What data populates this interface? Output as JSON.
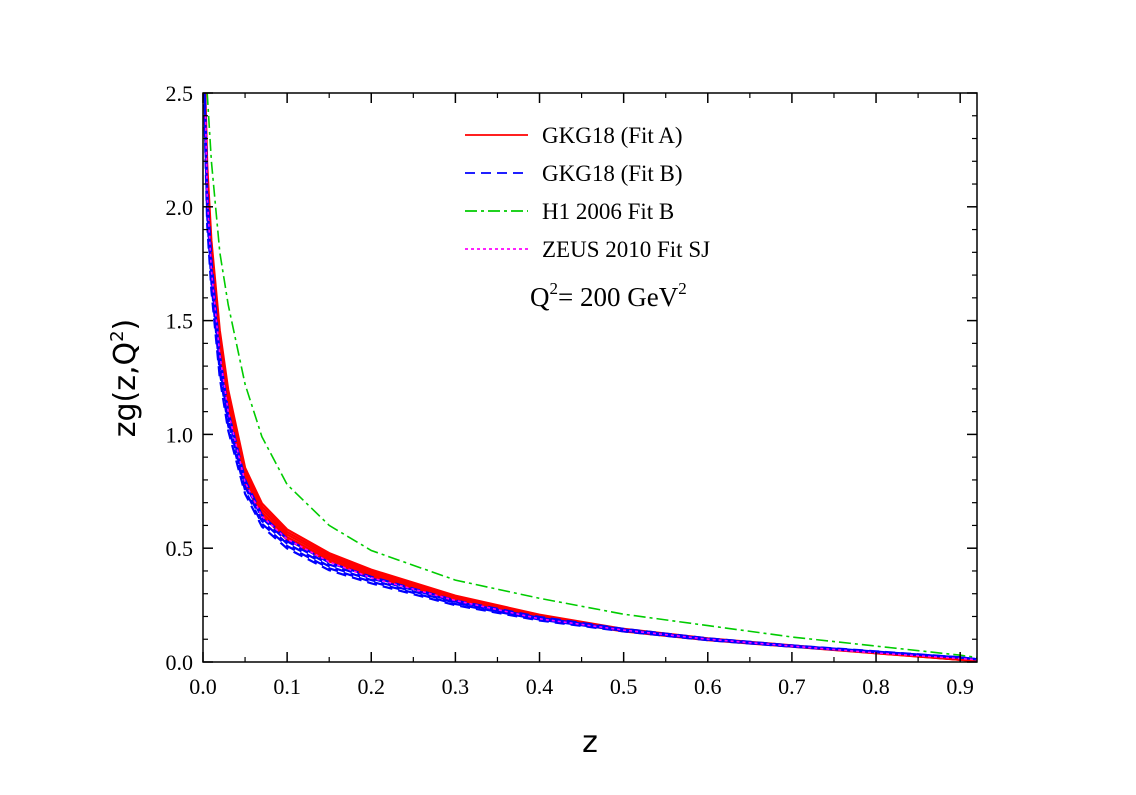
{
  "chart_data": {
    "type": "line",
    "xlabel": "z",
    "ylabel_main": "zg(z,Q",
    "ylabel_sup": "2",
    "ylabel_tail": ")",
    "xlim": [
      0.0,
      0.92
    ],
    "ylim": [
      0.0,
      2.5
    ],
    "x_ticks": [
      "0.0",
      "0.1",
      "0.2",
      "0.3",
      "0.4",
      "0.5",
      "0.6",
      "0.7",
      "0.8",
      "0.9"
    ],
    "y_ticks": [
      "0.0",
      "0.5",
      "1.0",
      "1.5",
      "2.0",
      "2.5"
    ],
    "grid": false,
    "legend_position": "top-right",
    "annotation": {
      "main": "Q",
      "sup1": "2",
      "middle": "= 200 GeV",
      "sup2": "2"
    },
    "series": [
      {
        "name": "GKG18 (Fit A)",
        "color": "#ff0000",
        "dash": "solid",
        "band": true,
        "x": [
          0.002,
          0.005,
          0.01,
          0.02,
          0.03,
          0.05,
          0.07,
          0.1,
          0.15,
          0.2,
          0.3,
          0.4,
          0.5,
          0.6,
          0.7,
          0.8,
          0.9,
          0.92
        ],
        "y": [
          2.5,
          2.1,
          1.78,
          1.4,
          1.15,
          0.82,
          0.67,
          0.56,
          0.46,
          0.39,
          0.28,
          0.2,
          0.14,
          0.1,
          0.07,
          0.04,
          0.01,
          0.005
        ]
      },
      {
        "name": "GKG18 (Fit B)",
        "color": "#0000ff",
        "dash": "dashed",
        "band": true,
        "x": [
          0.002,
          0.005,
          0.01,
          0.02,
          0.03,
          0.05,
          0.07,
          0.1,
          0.15,
          0.2,
          0.3,
          0.4,
          0.5,
          0.6,
          0.7,
          0.8,
          0.9,
          0.92
        ],
        "y": [
          2.45,
          2.0,
          1.7,
          1.3,
          1.06,
          0.77,
          0.62,
          0.52,
          0.42,
          0.36,
          0.26,
          0.19,
          0.14,
          0.1,
          0.07,
          0.045,
          0.02,
          0.012
        ]
      },
      {
        "name": "H1 2006 Fit B",
        "color": "#00cc00",
        "dash": "dashdot",
        "band": false,
        "x": [
          0.005,
          0.01,
          0.02,
          0.03,
          0.05,
          0.07,
          0.1,
          0.15,
          0.2,
          0.3,
          0.4,
          0.5,
          0.6,
          0.7,
          0.8,
          0.9,
          0.92
        ],
        "y": [
          2.5,
          2.2,
          1.8,
          1.57,
          1.22,
          0.99,
          0.78,
          0.6,
          0.49,
          0.36,
          0.28,
          0.21,
          0.16,
          0.11,
          0.07,
          0.03,
          0.02
        ]
      },
      {
        "name": "ZEUS 2010 Fit SJ",
        "color": "#ff00ff",
        "dash": "dotted",
        "band": false,
        "x": [
          0.003,
          0.005,
          0.01,
          0.02,
          0.03,
          0.05,
          0.07,
          0.1,
          0.15,
          0.2,
          0.3,
          0.4,
          0.5,
          0.6,
          0.7,
          0.8,
          0.9,
          0.92
        ],
        "y": [
          2.4,
          2.05,
          1.72,
          1.35,
          1.1,
          0.79,
          0.64,
          0.54,
          0.44,
          0.37,
          0.27,
          0.19,
          0.14,
          0.1,
          0.07,
          0.04,
          0.015,
          0.01
        ]
      }
    ]
  }
}
